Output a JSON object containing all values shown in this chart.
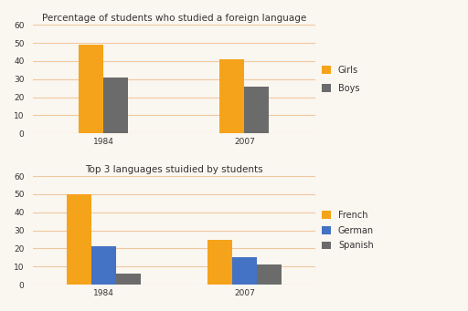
{
  "chart1": {
    "title": "Percentage of students who studied a foreign language",
    "years": [
      "1984",
      "2007"
    ],
    "girls": [
      49,
      41
    ],
    "boys": [
      31,
      26
    ],
    "colors": {
      "girls": "#F5A31A",
      "boys": "#6B6B6B"
    },
    "ylim": [
      0,
      60
    ],
    "yticks": [
      0,
      10,
      20,
      30,
      40,
      50,
      60
    ],
    "legend_labels": [
      "Girls",
      "Boys"
    ]
  },
  "chart2": {
    "title": "Top 3 languages stuidied by students",
    "years": [
      "1984",
      "2007"
    ],
    "french": [
      50,
      25
    ],
    "german": [
      21,
      15
    ],
    "spanish": [
      6,
      11
    ],
    "colors": {
      "french": "#F5A31A",
      "german": "#4472C4",
      "spanish": "#6B6B6B"
    },
    "ylim": [
      0,
      60
    ],
    "yticks": [
      0,
      10,
      20,
      30,
      40,
      50,
      60
    ],
    "legend_labels": [
      "French",
      "German",
      "Spanish"
    ]
  },
  "background_color": "#FAF6F0",
  "grid_color": "#F0C8A0",
  "bar_width": 0.35,
  "title_fontsize": 7.5,
  "tick_fontsize": 6.5,
  "legend_fontsize": 7
}
